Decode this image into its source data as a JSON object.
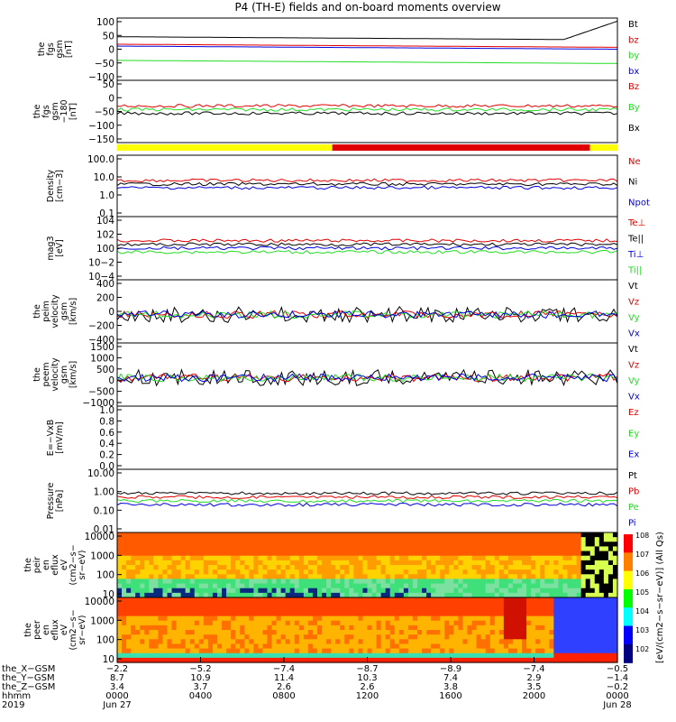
{
  "title": "P4 (TH-E) fields and on-board moments overview",
  "colors": {
    "black": "#000000",
    "red": "#e00000",
    "green": "#22dd22",
    "blue": "#0000e0",
    "yellow": "#ffff00"
  },
  "chart_data": [
    {
      "type": "line",
      "id": "fgs",
      "ylabel": [
        "the",
        "fgs",
        "gsm",
        "[nT]"
      ],
      "ylim": [
        -100,
        100
      ],
      "ticks": [
        "100",
        "50",
        "0",
        "−50",
        "−100"
      ],
      "series": [
        {
          "name": "Bt",
          "color": "black"
        },
        {
          "name": "bz",
          "color": "red"
        },
        {
          "name": "by",
          "color": "green"
        },
        {
          "name": "bx",
          "color": "blue"
        }
      ]
    },
    {
      "type": "line",
      "id": "fgs180",
      "ylabel": [
        "the",
        "fgs",
        "gsm",
        "−180",
        "[nT]"
      ],
      "ylim": [
        -180,
        50
      ],
      "ticks": [
        "50",
        "0",
        "−50",
        "−100",
        "−150"
      ],
      "series": [
        {
          "name": "Bz",
          "color": "red"
        },
        {
          "name": "By",
          "color": "green"
        },
        {
          "name": "Bx",
          "color": "black"
        }
      ]
    },
    {
      "type": "line",
      "id": "density",
      "ylabel": [
        "Density",
        "[cm−3]"
      ],
      "ylim": [
        0.1,
        100
      ],
      "ticks": [
        "100.0",
        "10.0",
        "1.0",
        "0.1"
      ],
      "series": [
        {
          "name": "Ne",
          "color": "red"
        },
        {
          "name": "Ni",
          "color": "black"
        },
        {
          "name": "Npot",
          "color": "blue"
        }
      ]
    },
    {
      "type": "line",
      "id": "temp",
      "ylabel": [
        "mag3",
        "[eV]"
      ],
      "ylim": [
        -4,
        4
      ],
      "ticks": [
        "104",
        "102",
        "100",
        "10−2",
        "10−4"
      ],
      "series": [
        {
          "name": "Te⊥",
          "color": "red"
        },
        {
          "name": "Te||",
          "color": "black"
        },
        {
          "name": "Ti⊥",
          "color": "blue"
        },
        {
          "name": "Ti||",
          "color": "green"
        }
      ]
    },
    {
      "type": "line",
      "id": "peim",
      "ylabel": [
        "the",
        "peim",
        "velocity",
        "gsm",
        "[km/s]"
      ],
      "ylim": [
        -400,
        400
      ],
      "ticks": [
        "400",
        "200",
        "0",
        "−200",
        "−400"
      ],
      "series": [
        {
          "name": "Vt",
          "color": "black"
        },
        {
          "name": "Vz",
          "color": "red"
        },
        {
          "name": "Vy",
          "color": "green"
        },
        {
          "name": "Vx",
          "color": "blue"
        }
      ]
    },
    {
      "type": "line",
      "id": "peem",
      "ylabel": [
        "the",
        "peem",
        "velocity",
        "gsm",
        "[km/s]"
      ],
      "ylim": [
        -1500,
        1500
      ],
      "ticks": [
        "1500",
        "1000",
        "500",
        "0",
        "−500",
        "−1000"
      ],
      "series": [
        {
          "name": "Vt",
          "color": "black"
        },
        {
          "name": "Vz",
          "color": "red"
        },
        {
          "name": "Vy",
          "color": "green"
        },
        {
          "name": "Vx",
          "color": "blue"
        }
      ]
    },
    {
      "type": "line",
      "id": "efield",
      "ylabel": [
        "E=−VxB",
        "[mV/m]"
      ],
      "ylim": [
        0,
        1
      ],
      "ticks": [
        "1.0",
        "0.8",
        "0.6",
        "0.4",
        "0.2",
        "0.0"
      ],
      "series": [
        {
          "name": "Ez",
          "color": "red"
        },
        {
          "name": "Ey",
          "color": "green"
        },
        {
          "name": "Ex",
          "color": "blue"
        }
      ]
    },
    {
      "type": "line",
      "id": "pressure",
      "ylabel": [
        "Pressure",
        "[nPa]"
      ],
      "ylim": [
        0.001,
        10
      ],
      "ticks": [
        "10.00",
        "1.00",
        "0.10",
        "0.01"
      ],
      "series": [
        {
          "name": "Pt",
          "color": "black"
        },
        {
          "name": "Pb",
          "color": "red"
        },
        {
          "name": "Pe",
          "color": "green"
        },
        {
          "name": "Pi",
          "color": "blue"
        }
      ]
    },
    {
      "type": "heatmap",
      "id": "peir",
      "ylabel": [
        "the",
        "peir",
        "en",
        "eflux",
        "eV",
        "(cm2−s−",
        "sr−eV)"
      ],
      "ylim": [
        10,
        20000
      ],
      "ticks": [
        "10000",
        "1000",
        "100",
        "10"
      ]
    },
    {
      "type": "heatmap",
      "id": "peer",
      "ylabel": [
        "the",
        "peer",
        "en",
        "eflux",
        "eV",
        "(cm2−s−",
        "sr−eV)"
      ],
      "ylim": [
        10,
        20000
      ],
      "ticks": [
        "10000",
        "1000",
        "100",
        "10"
      ]
    }
  ],
  "colorbar": {
    "label": "[eV/(cm2−s−sr−eV)] (All Qs)",
    "ticks": [
      "108",
      "107",
      "106",
      "105",
      "104",
      "103",
      "102"
    ]
  },
  "ephemeris": {
    "labels": [
      "the_X−GSM",
      "the_Y−GSM",
      "the_Z−GSM",
      "hhmm",
      "2019"
    ],
    "columns": [
      [
        "−2.2",
        "8.7",
        "3.4",
        "0000",
        "Jun 27"
      ],
      [
        "−5.2",
        "10.9",
        "3.7",
        "0400",
        ""
      ],
      [
        "−7.4",
        "11.4",
        "2.6",
        "0800",
        ""
      ],
      [
        "−8.7",
        "10.3",
        "2.6",
        "1200",
        ""
      ],
      [
        "−8.9",
        "7.4",
        "3.8",
        "1600",
        ""
      ],
      [
        "−7.4",
        "2.9",
        "3.5",
        "2000",
        ""
      ],
      [
        "−0.5",
        "−1.4",
        "−0.2",
        "0000",
        "Jun 28"
      ]
    ]
  },
  "mode_bar": {
    "segments": [
      {
        "from": 0,
        "to": 0.43,
        "color": "yellow"
      },
      {
        "from": 0.43,
        "to": 0.945,
        "color": "red"
      },
      {
        "from": 0.945,
        "to": 1,
        "color": "yellow"
      }
    ]
  }
}
